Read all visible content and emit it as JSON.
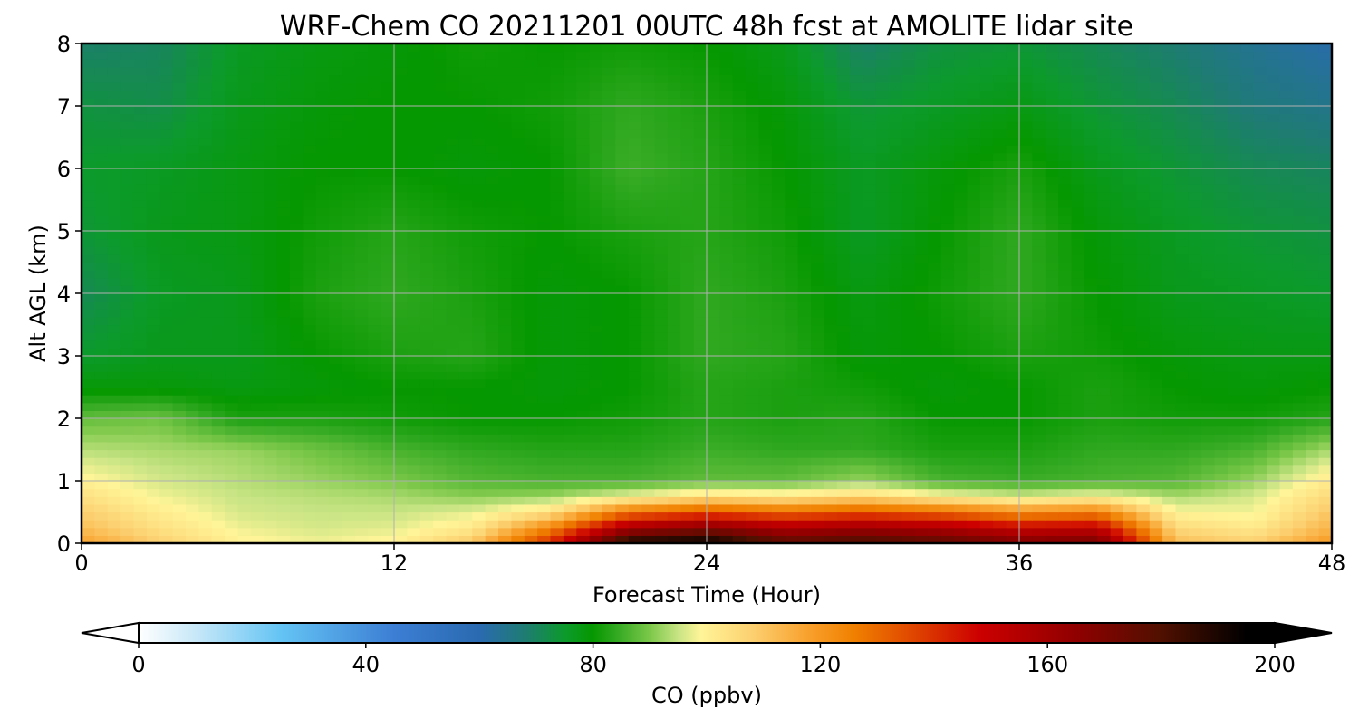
{
  "chart_data": {
    "type": "heatmap",
    "title": "WRF-Chem CO  20211201 00UTC 48h fcst at AMOLITE lidar site",
    "xlabel": "Forecast Time (Hour)",
    "ylabel": "Alt AGL (km)",
    "xlim": [
      0,
      48
    ],
    "ylim": [
      0,
      8
    ],
    "xticks": [
      0,
      12,
      24,
      36,
      48
    ],
    "yticks": [
      0,
      1,
      2,
      3,
      4,
      5,
      6,
      7,
      8
    ],
    "grid": true,
    "x": [
      0,
      3,
      6,
      9,
      12,
      15,
      18,
      21,
      24,
      27,
      30,
      33,
      36,
      39,
      42,
      45,
      48
    ],
    "y": [
      0.0,
      0.25,
      0.5,
      0.75,
      1.0,
      1.5,
      2.0,
      2.5,
      3.0,
      4.0,
      5.0,
      6.0,
      7.0,
      8.0
    ],
    "z": [
      [
        118,
        108,
        100,
        98,
        100,
        110,
        142,
        192,
        196,
        178,
        182,
        178,
        170,
        172,
        112,
        108,
        120
      ],
      [
        112,
        104,
        98,
        96,
        97,
        102,
        125,
        160,
        168,
        158,
        162,
        158,
        150,
        152,
        106,
        102,
        114
      ],
      [
        108,
        101,
        96,
        95,
        95,
        97,
        104,
        128,
        135,
        130,
        134,
        130,
        122,
        125,
        99,
        98,
        110
      ],
      [
        104,
        98,
        95,
        94,
        93,
        91,
        92,
        98,
        104,
        102,
        106,
        100,
        96,
        99,
        93,
        96,
        106
      ],
      [
        100,
        96,
        94,
        92,
        90,
        87,
        86,
        86,
        88,
        88,
        92,
        86,
        85,
        86,
        87,
        92,
        102
      ],
      [
        94,
        93,
        92,
        89,
        86,
        84,
        83,
        83,
        85,
        84,
        84,
        82,
        82,
        84,
        84,
        86,
        93
      ],
      [
        88,
        89,
        82,
        82,
        81,
        80,
        80,
        81,
        83,
        82,
        83,
        80,
        80,
        82,
        81,
        81,
        83
      ],
      [
        79,
        79,
        78,
        79,
        80,
        80,
        79,
        80,
        83,
        82,
        81,
        79,
        80,
        82,
        80,
        79,
        80
      ],
      [
        75,
        77,
        77,
        80,
        82,
        83,
        79,
        80,
        84,
        83,
        79,
        80,
        82,
        81,
        79,
        78,
        78
      ],
      [
        71,
        76,
        77,
        82,
        84,
        82,
        79,
        80,
        84,
        82,
        78,
        81,
        84,
        80,
        77,
        76,
        75
      ],
      [
        74,
        77,
        78,
        81,
        83,
        81,
        80,
        82,
        83,
        81,
        76,
        80,
        84,
        79,
        76,
        74,
        73
      ],
      [
        75,
        76,
        78,
        80,
        80,
        79,
        80,
        85,
        83,
        80,
        76,
        79,
        82,
        77,
        74,
        71,
        70
      ],
      [
        73,
        72,
        77,
        79,
        80,
        80,
        81,
        84,
        82,
        79,
        74,
        76,
        78,
        74,
        71,
        67,
        65
      ],
      [
        69,
        70,
        76,
        78,
        79,
        81,
        80,
        81,
        80,
        77,
        69,
        73,
        74,
        71,
        68,
        64,
        61
      ]
    ],
    "colorbar": {
      "label": "CO  (ppbv)",
      "vmin": 0,
      "vmax": 200,
      "ticks": [
        0,
        40,
        80,
        120,
        160,
        200
      ],
      "extend": "both",
      "stops": [
        {
          "v": 0,
          "c": "#ffffff"
        },
        {
          "v": 10,
          "c": "#c8e8f8"
        },
        {
          "v": 25,
          "c": "#64c4f4"
        },
        {
          "v": 45,
          "c": "#3c7ed4"
        },
        {
          "v": 60,
          "c": "#2a6ab0"
        },
        {
          "v": 68,
          "c": "#1e7c72"
        },
        {
          "v": 75,
          "c": "#0c9a2c"
        },
        {
          "v": 80,
          "c": "#069800"
        },
        {
          "v": 84,
          "c": "#30a820"
        },
        {
          "v": 90,
          "c": "#7cc84a"
        },
        {
          "v": 95,
          "c": "#c8e484"
        },
        {
          "v": 99,
          "c": "#fff598"
        },
        {
          "v": 108,
          "c": "#fcd070"
        },
        {
          "v": 118,
          "c": "#f8a02c"
        },
        {
          "v": 126,
          "c": "#f08000"
        },
        {
          "v": 136,
          "c": "#e04800"
        },
        {
          "v": 148,
          "c": "#cc0000"
        },
        {
          "v": 165,
          "c": "#900000"
        },
        {
          "v": 180,
          "c": "#501000"
        },
        {
          "v": 195,
          "c": "#000000"
        },
        {
          "v": 200,
          "c": "#000000"
        }
      ]
    }
  }
}
